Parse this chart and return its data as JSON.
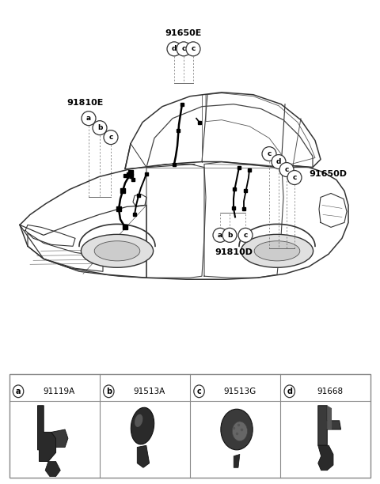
{
  "bg_color": "#ffffff",
  "legend_items": [
    {
      "letter": "a",
      "code": "91119A"
    },
    {
      "letter": "b",
      "code": "91513A"
    },
    {
      "letter": "c",
      "code": "91513G"
    },
    {
      "letter": "d",
      "code": "91668"
    }
  ],
  "part_labels": [
    "91650E",
    "91810E",
    "91650D",
    "91810D"
  ],
  "line_color": "#333333",
  "dash_color": "#666666"
}
